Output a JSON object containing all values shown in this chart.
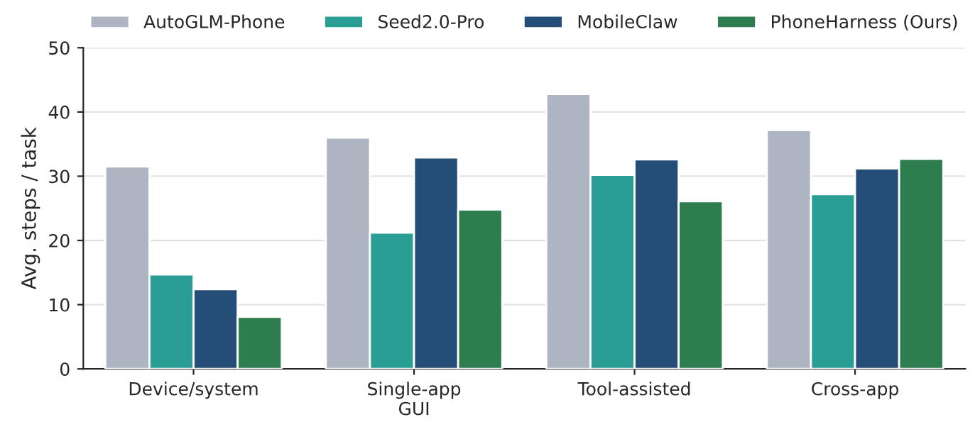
{
  "chart_data": {
    "type": "bar",
    "ylabel": "Avg. steps / task",
    "categories": [
      "Device/system",
      "Single-app\nGUI",
      "Tool-assisted",
      "Cross-app"
    ],
    "series": [
      {
        "name": "AutoGLM-Phone",
        "color": "#adb5c2",
        "values": [
          31.5,
          36.0,
          42.8,
          37.2
        ]
      },
      {
        "name": "Seed2.0-Pro",
        "color": "#2a9d95",
        "values": [
          14.7,
          21.2,
          30.2,
          27.2
        ]
      },
      {
        "name": "MobileClaw",
        "color": "#244e78",
        "values": [
          12.4,
          32.9,
          32.6,
          31.2
        ]
      },
      {
        "name": "PhoneHarness (Ours)",
        "color": "#2e7d4f",
        "values": [
          8.1,
          24.8,
          26.1,
          32.7
        ]
      }
    ],
    "ylim": [
      0,
      50
    ],
    "yticks": [
      0,
      10,
      20,
      30,
      40,
      50
    ],
    "grid": "y",
    "legend": "top"
  }
}
